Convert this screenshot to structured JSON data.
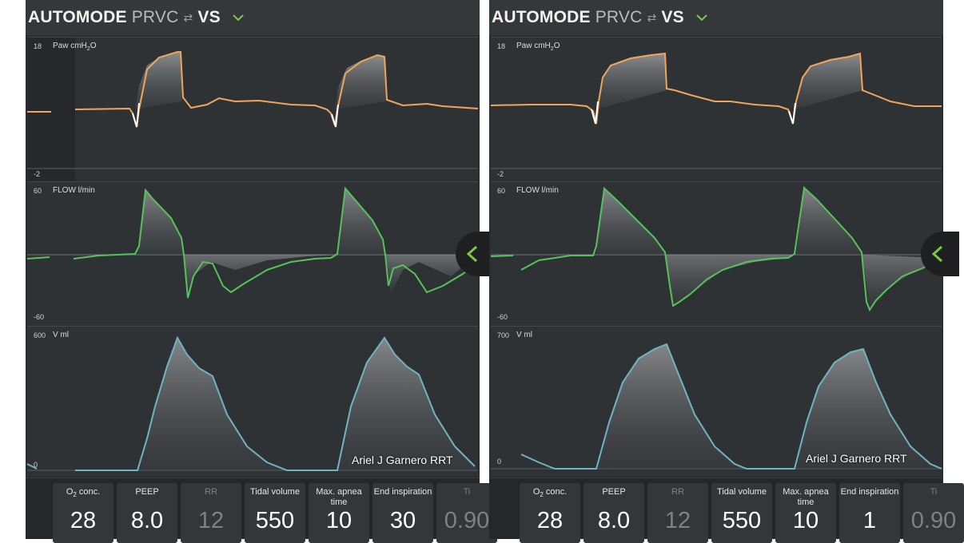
{
  "left_screen": {
    "header": {
      "mode": "AUTOMODE",
      "control": "PRVC",
      "spont": "VS",
      "swap_icon": "⇄"
    },
    "paw": {
      "title": "Paw cmH",
      "title_sub": "2",
      "title_end": "O",
      "ymax": "18",
      "ymin": "-2"
    },
    "flow": {
      "title": "FLOW l/min",
      "ymax": "60",
      "ymin": "-60"
    },
    "volume": {
      "title": "V ml",
      "ymax": "600",
      "ymin": "0"
    },
    "credit": "Ariel J Garnero RRT",
    "params": [
      {
        "label": "O",
        "label_sub": "2",
        "label_end": " conc.",
        "value": "28"
      },
      {
        "label": "PEEP",
        "value": "8.0"
      },
      {
        "label": "RR",
        "value": "12"
      },
      {
        "label": "Tidal volume",
        "value": "550"
      },
      {
        "label": "Max. apnea time",
        "value": "10"
      },
      {
        "label": "End inspiration",
        "value": "30"
      },
      {
        "label": "Ti",
        "value": "0.90"
      }
    ]
  },
  "right_screen": {
    "header": {
      "mode": "AUTOMODE",
      "control": "PRVC",
      "spont": "VS",
      "swap_icon": "⇄"
    },
    "paw": {
      "title": "Paw cmH",
      "title_sub": "2",
      "title_end": "O",
      "ymax": "18",
      "ymin": "-2"
    },
    "flow": {
      "title": "FLOW l/min",
      "ymax": "60",
      "ymin": "-60"
    },
    "volume": {
      "title": "V ml",
      "ymax": "700",
      "ymin": "0"
    },
    "credit": "Ariel J Garnero RRT",
    "params": [
      {
        "label": "O",
        "label_sub": "2",
        "label_end": " conc.",
        "value": "28"
      },
      {
        "label": "PEEP",
        "value": "8.0"
      },
      {
        "label": "RR",
        "value": "12"
      },
      {
        "label": "Tidal volume",
        "value": "550"
      },
      {
        "label": "Max. apnea time",
        "value": "10"
      },
      {
        "label": "End inspiration",
        "value": "1"
      },
      {
        "label": "Ti",
        "value": "0.90"
      }
    ]
  },
  "colors": {
    "pressure": "#f0a65a",
    "flow": "#55c35a",
    "volume": "#6fb4c4",
    "accent": "#7ac943"
  },
  "icons": {
    "header_chevron": "chevron-down-icon",
    "side_button": "chevron-left-icon"
  }
}
